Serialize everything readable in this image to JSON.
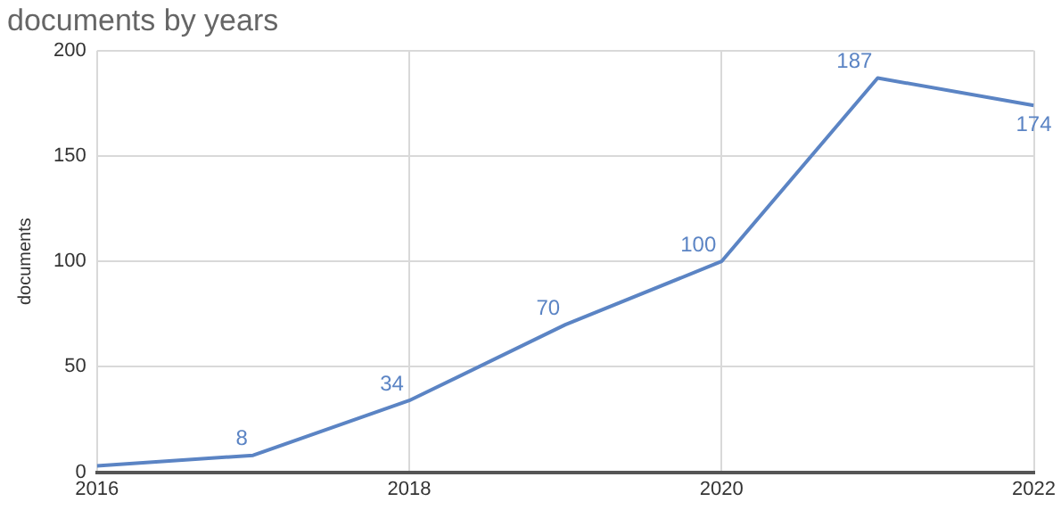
{
  "chart_data": {
    "type": "line",
    "title": "documents by years",
    "ylabel": "documents",
    "x": [
      2016,
      2017,
      2018,
      2019,
      2020,
      2021,
      2022
    ],
    "series": [
      {
        "color": "#5b84c4",
        "values": [
          3,
          8,
          34,
          70,
          100,
          187,
          174
        ],
        "value_labels": [
          null,
          "8",
          "34",
          "70",
          "100",
          "187",
          "174"
        ]
      }
    ],
    "xlim": [
      2016,
      2022
    ],
    "xticks": [
      2016,
      2018,
      2020,
      2022
    ],
    "ylim": [
      0,
      200
    ],
    "yticks": [
      0,
      50,
      100,
      150,
      200
    ],
    "grid": true,
    "legend": false,
    "line_style": "solid"
  }
}
